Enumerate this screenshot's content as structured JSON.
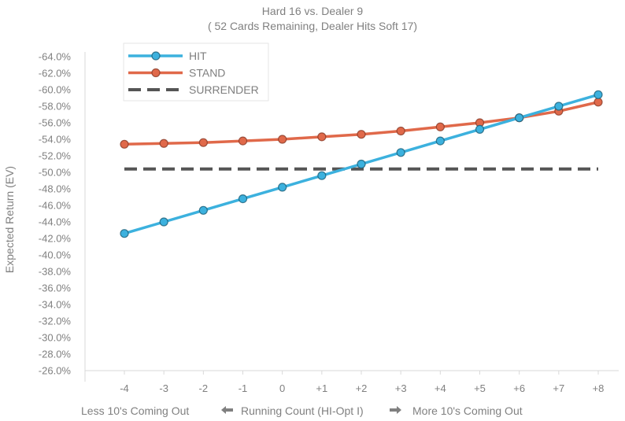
{
  "chart_data": {
    "type": "line",
    "title": "Hard 16 vs. Dealer 9",
    "subtitle": "( 52 Cards Remaining, Dealer Hits Soft 17)",
    "ylabel": "Expected Return (EV)",
    "xlabel_left": "Less 10's Coming Out",
    "xlabel_center": "Running Count (HI-Opt I)",
    "xlabel_right": "More 10's Coming Out",
    "categories": [
      "-4",
      "-3",
      "-2",
      "-1",
      "0",
      "+1",
      "+2",
      "+3",
      "+4",
      "+5",
      "+6",
      "+7",
      "+8"
    ],
    "ylim": [
      -64,
      -26
    ],
    "yticks": [
      -26,
      -28,
      -30,
      -32,
      -34,
      -36,
      -38,
      -40,
      -42,
      -44,
      -46,
      -48,
      -50,
      -52,
      -54,
      -56,
      -58,
      -60,
      -62,
      -64
    ],
    "ytick_suffix": "%",
    "legend_position": "top-left",
    "grid": false,
    "series": [
      {
        "name": "HIT",
        "color": "#3cb1de",
        "marker": true,
        "values": [
          -42.6,
          -44.0,
          -45.4,
          -46.8,
          -48.2,
          -49.6,
          -51.0,
          -52.4,
          -53.8,
          -55.2,
          -56.6,
          -58.0,
          -59.4
        ]
      },
      {
        "name": "STAND",
        "color": "#e0694a",
        "marker": true,
        "values": [
          -53.4,
          -53.5,
          -53.6,
          -53.8,
          -54.0,
          -54.3,
          -54.6,
          -55.0,
          -55.5,
          -56.0,
          -56.6,
          -57.4,
          -58.5
        ]
      },
      {
        "name": "SURRENDER",
        "color": "#555555",
        "dashed": true,
        "values": [
          -50.4,
          -50.4,
          -50.4,
          -50.4,
          -50.4,
          -50.4,
          -50.4,
          -50.4,
          -50.4,
          -50.4,
          -50.4,
          -50.4,
          -50.4
        ]
      }
    ]
  }
}
